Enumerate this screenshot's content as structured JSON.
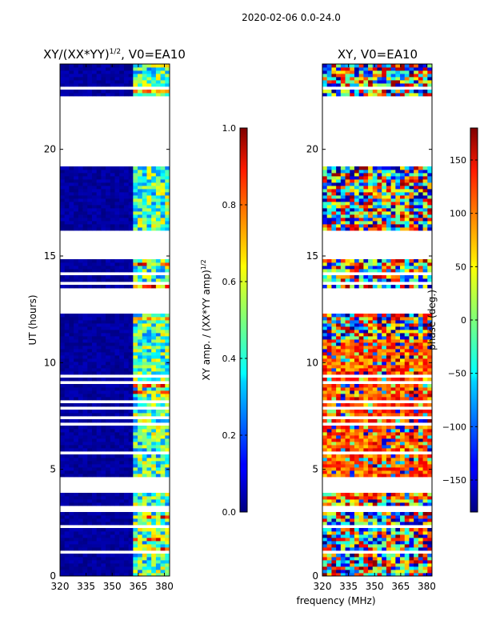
{
  "figure": {
    "suptitle": "2020-02-06 0.0-24.0",
    "xlabel_shared": "frequency (MHz)"
  },
  "chart_data": [
    {
      "type": "heatmap",
      "panel": "amplitude",
      "title_prefix": "XY/(XX*YY)",
      "title_sup": "1/2",
      "title_suffix": ", V0=EA10",
      "xlabel": "frequency (MHz)",
      "ylabel": "UT (hours)",
      "xlim": [
        320,
        383
      ],
      "ylim": [
        0,
        24
      ],
      "xticks": [
        320,
        335,
        350,
        365,
        380
      ],
      "yticks": [
        0,
        5,
        10,
        15,
        20
      ],
      "colormap": "jet",
      "colorbar": {
        "label_prefix": "XY amp. / (XX*YY amp)",
        "label_sup": "1/2",
        "range": [
          0.0,
          1.0
        ],
        "ticks": [
          "0.0",
          "0.2",
          "0.4",
          "0.6",
          "0.8",
          "1.0"
        ]
      },
      "flagged_ut_ranges": [
        [
          0.9,
          1.2
        ],
        [
          2.9,
          3.2
        ],
        [
          12.4,
          13.4
        ],
        [
          14.9,
          16.2
        ],
        [
          19.1,
          22.4
        ]
      ],
      "active_band_mhz": [
        360,
        383
      ],
      "dominant_value_outside_band": 0.0,
      "typical_value_in_band": 0.45
    },
    {
      "type": "heatmap",
      "panel": "phase",
      "title": "XY, V0=EA10",
      "xlabel": "frequency (MHz)",
      "ylabel": "",
      "xlim": [
        320,
        383
      ],
      "ylim": [
        0,
        24
      ],
      "xticks": [
        320,
        335,
        350,
        365,
        380
      ],
      "yticks": [
        0,
        5,
        10,
        15,
        20
      ],
      "colormap": "jet",
      "colorbar": {
        "label": "phase (deg.)",
        "range": [
          -180,
          180
        ],
        "ticks": [
          "−150",
          "−100",
          "−50",
          "0",
          "50",
          "100",
          "150"
        ]
      },
      "flagged_ut_ranges": [
        [
          0.9,
          1.2
        ],
        [
          2.9,
          3.2
        ],
        [
          12.4,
          13.4
        ],
        [
          14.9,
          16.2
        ],
        [
          19.1,
          22.4
        ]
      ],
      "dominant_phase_range_deg": [
        60,
        150
      ]
    }
  ]
}
